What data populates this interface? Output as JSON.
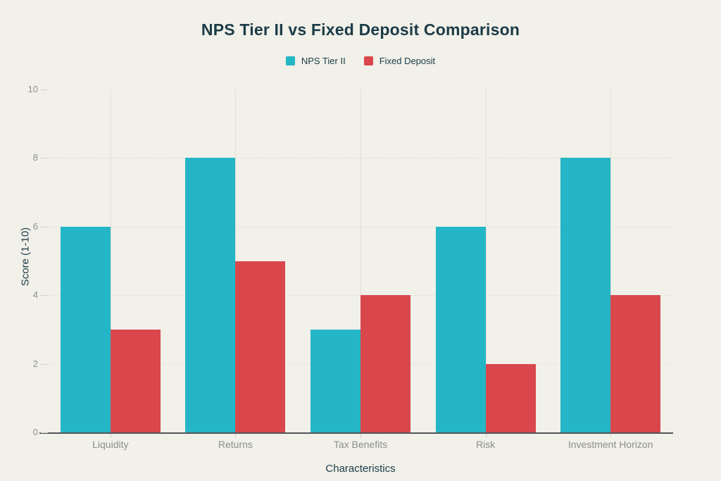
{
  "chart_data": {
    "type": "bar",
    "title": "NPS Tier II vs Fixed Deposit Comparison",
    "xlabel": "Characteristics",
    "ylabel": "Score (1-10)",
    "categories": [
      "Liquidity",
      "Returns",
      "Tax Benefits",
      "Risk",
      "Investment Horizon"
    ],
    "series": [
      {
        "name": "NPS Tier II",
        "color": "#24B6C6",
        "values": [
          6,
          8,
          3,
          6,
          8
        ]
      },
      {
        "name": "Fixed Deposit",
        "color": "#D9474D",
        "values": [
          3,
          5,
          4,
          2,
          4
        ]
      }
    ],
    "ylim": [
      0,
      10
    ],
    "yticks": [
      0,
      2,
      4,
      6,
      8,
      10
    ],
    "grid": true,
    "legend_position": "top"
  },
  "colors": {
    "background": "#F1F0E9",
    "title_text": "#1B3B47",
    "muted_text": "#8D8D8D",
    "gridline": "#E2E1D8",
    "tick": "#CFCFC8",
    "axis_line": "#54565A"
  }
}
